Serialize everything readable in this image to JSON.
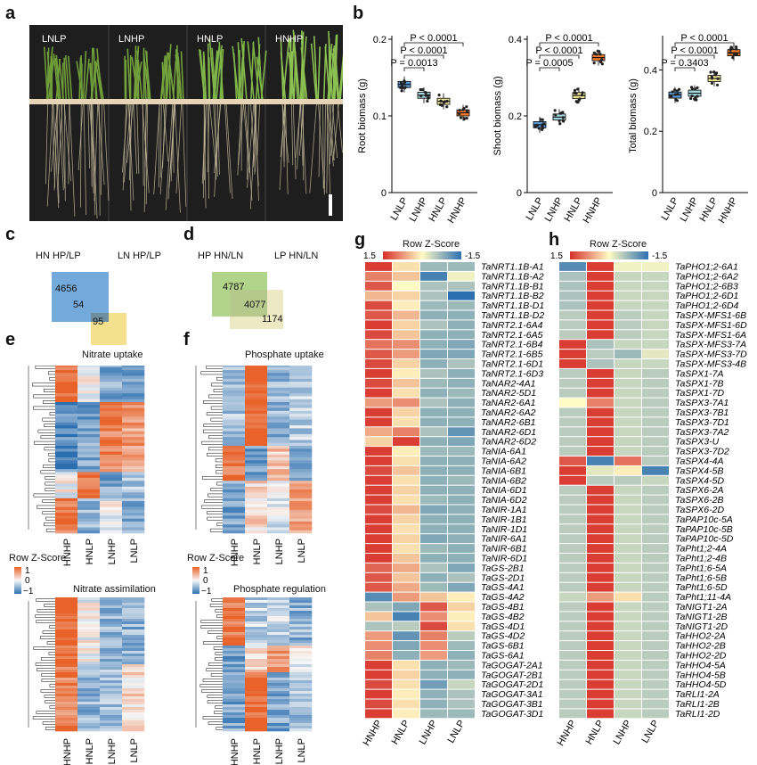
{
  "panels": {
    "a": "a",
    "b": "b",
    "c": "c",
    "d": "d",
    "e": "e",
    "f": "f",
    "g": "g",
    "h": "h"
  },
  "photo_labels": [
    "LNLP",
    "LNHP",
    "HNLP",
    "HNHP"
  ],
  "colors": {
    "LNLP": "#5b9bd5",
    "LNHP": "#a6d8e0",
    "HNLP": "#f1e99a",
    "HNHP": "#ee7d31",
    "high": "#d62f2a",
    "mid": "#fffbc4",
    "low": "#2c6fb0"
  },
  "chart_data": [
    {
      "type": "box",
      "title": "",
      "ylabel": "Root biomass (g)",
      "ylim": [
        0,
        0.2
      ],
      "yticks": [
        "0",
        "0.1",
        "0.2"
      ],
      "categories": [
        "LNLP",
        "LNHP",
        "HNLP",
        "HNHP"
      ],
      "values": [
        0.141,
        0.127,
        0.119,
        0.104
      ],
      "annotations": [
        "P < 0.0001",
        "P < 0.0001",
        "P = 0.0013"
      ]
    },
    {
      "type": "box",
      "title": "",
      "ylabel": "Shoot biomass (g)",
      "ylim": [
        0,
        0.4
      ],
      "yticks": [
        "0",
        "0.2",
        "0.4"
      ],
      "categories": [
        "LNLP",
        "LNHP",
        "HNLP",
        "HNHP"
      ],
      "values": [
        0.177,
        0.197,
        0.253,
        0.352
      ],
      "annotations": [
        "P < 0.0001",
        "P < 0.0001",
        "P = 0.0005"
      ]
    },
    {
      "type": "box",
      "title": "",
      "ylabel": "Total biomass (g)",
      "ylim": [
        0,
        0.5
      ],
      "yticks": [
        "0",
        "0.2",
        "0.4"
      ],
      "categories": [
        "LNLP",
        "LNHP",
        "HNLP",
        "HNHP"
      ],
      "values": [
        0.318,
        0.324,
        0.372,
        0.456
      ],
      "annotations": [
        "P < 0.0001",
        "P < 0.0001",
        "P = 0.3403"
      ]
    }
  ],
  "venn_c": {
    "left_title": "HN  HP/LP",
    "right_title": "LN  HP/LP",
    "a": "4656",
    "ab": "54",
    "b": "95"
  },
  "venn_d": {
    "left_title": "HP  HN/LN",
    "right_title": "LP  HN/LN",
    "a": "4787",
    "ab": "4077",
    "b": "1174"
  },
  "heatmap_e": {
    "title1": "Nitrate uptake",
    "title2": "Nitrate assimilation",
    "cols": [
      "HNHP",
      "HNLP",
      "LNHP",
      "LNLP"
    ]
  },
  "heatmap_f": {
    "title1": "Phosphate uptake",
    "title2": "Phosphate regulation",
    "cols": [
      "HNHP",
      "HNLP",
      "LNHP",
      "LNLP"
    ]
  },
  "zscore_legend": {
    "title": "Row Z-Score",
    "ticks": [
      "1",
      "0",
      "−1"
    ]
  },
  "g_legend": {
    "title": "Row Z-Score",
    "lo": "1.5",
    "hi": "-1.5"
  },
  "g_cols": [
    "HNHP",
    "HNLP",
    "LNHP",
    "LNLP"
  ],
  "g_genes": [
    "TaNRT1.1B-A1",
    "TaNRT1.1B-A2",
    "TaNRT1.1B-B1",
    "TaNRT1.1B-B2",
    "TaNRT1.1B-D1",
    "TaNRT1.1B-D2",
    "TaNRT2.1-6A4",
    "TaNRT2.1-6A5",
    "TaNRT2.1-6B4",
    "TaNRT2.1-6B5",
    "TaNRT2.1-6D1",
    "TaNRT2.1-6D3",
    "TaNAR2-4A1",
    "TaNAR2-5D1",
    "TaNAR2-6A1",
    "TaNAR2-6A2",
    "TaNAR2-6B1",
    "TaNAR2-6D1",
    "TaNAR2-6D2",
    "TaNIA-6A1",
    "TaNIA-6A2",
    "TaNIA-6B1",
    "TaNIA-6B2",
    "TaNIA-6D1",
    "TaNIA-6D2",
    "TaNIR-1A1",
    "TaNIR-1B1",
    "TaNIR-1D1",
    "TaNIR-6A1",
    "TaNIR-6B1",
    "TaNIR-6D1",
    "TaGS-2B1",
    "TaGS-2D1",
    "TaGS-4A1",
    "TaGS-4A2",
    "TaGS-4B1",
    "TaGS-4B2",
    "TaGS-4D1",
    "TaGS-4D2",
    "TaGS-6B1",
    "TaGS-6A1",
    "TaGOGAT-2A1",
    "TaGOGAT-2B1",
    "TaGOGAT-2D1",
    "TaGOGAT-3A1",
    "TaGOGAT-3B1",
    "TaGOGAT-3D1"
  ],
  "g_values": [
    [
      1.4,
      0.2,
      -0.7,
      -0.7
    ],
    [
      0.9,
      0.4,
      -1.3,
      -0.1
    ],
    [
      1.2,
      0.0,
      -0.6,
      -0.6
    ],
    [
      0.5,
      0.3,
      -0.6,
      -1.5
    ],
    [
      1.3,
      0.1,
      -0.7,
      -0.7
    ],
    [
      1.2,
      0.5,
      -0.8,
      -0.8
    ],
    [
      1.4,
      0.3,
      -0.6,
      -0.8
    ],
    [
      1.3,
      0.4,
      -0.8,
      -0.8
    ],
    [
      1.0,
      0.8,
      -0.8,
      -0.9
    ],
    [
      1.2,
      0.7,
      -0.9,
      -0.9
    ],
    [
      1.3,
      0.3,
      -0.8,
      -0.6
    ],
    [
      1.4,
      0.1,
      -0.6,
      -0.8
    ],
    [
      1.3,
      0.4,
      -0.7,
      -0.8
    ],
    [
      1.4,
      0.2,
      -0.8,
      -0.7
    ],
    [
      0.7,
      0.8,
      -0.6,
      -0.8
    ],
    [
      1.4,
      0.3,
      -0.8,
      -0.8
    ],
    [
      1.4,
      0.2,
      -0.8,
      -0.8
    ],
    [
      0.6,
      0.9,
      -0.6,
      -1.1
    ],
    [
      0.3,
      1.4,
      -0.8,
      -0.9
    ],
    [
      1.4,
      0.1,
      -0.7,
      -0.7
    ],
    [
      1.4,
      0.2,
      -0.8,
      -0.8
    ],
    [
      1.3,
      0.4,
      -0.8,
      -0.8
    ],
    [
      1.4,
      0.2,
      -0.8,
      -0.7
    ],
    [
      1.4,
      0.3,
      -0.8,
      -0.8
    ],
    [
      1.4,
      0.2,
      -0.7,
      -0.8
    ],
    [
      1.3,
      0.5,
      -0.9,
      -0.8
    ],
    [
      1.4,
      0.3,
      -0.8,
      -0.8
    ],
    [
      1.4,
      0.2,
      -0.8,
      -0.8
    ],
    [
      1.4,
      0.3,
      -0.9,
      -0.8
    ],
    [
      1.4,
      0.2,
      -0.7,
      -0.8
    ],
    [
      1.4,
      0.4,
      -0.8,
      -0.8
    ],
    [
      1.1,
      0.6,
      -0.6,
      -0.9
    ],
    [
      1.2,
      0.4,
      -0.8,
      -0.6
    ],
    [
      1.2,
      0.6,
      -0.7,
      -0.9
    ],
    [
      -1.2,
      0.7,
      0.4,
      0.1
    ],
    [
      -0.6,
      -0.9,
      1.2,
      0.3
    ],
    [
      0.4,
      -1.3,
      0.8,
      0.1
    ],
    [
      -0.6,
      -0.5,
      1.3,
      0.2
    ],
    [
      0.7,
      -1.1,
      0.9,
      -0.5
    ],
    [
      0.8,
      -0.9,
      0.8,
      -0.7
    ],
    [
      0.9,
      -0.8,
      0.7,
      -0.8
    ],
    [
      1.4,
      0.2,
      -0.8,
      -0.7
    ],
    [
      1.4,
      0.3,
      -0.8,
      -0.8
    ],
    [
      1.3,
      0.2,
      -1.0,
      -0.4
    ],
    [
      1.4,
      0.1,
      -0.8,
      -0.6
    ],
    [
      1.3,
      0.2,
      -0.8,
      -0.6
    ],
    [
      1.4,
      0.1,
      -0.7,
      -0.7
    ]
  ],
  "h_legend": {
    "title": "Row Z-Score",
    "lo": "1.5",
    "hi": "-1.5"
  },
  "h_cols": [
    "HNHP",
    "HNLP",
    "LNHP",
    "LNLP"
  ],
  "h_genes": [
    "TaPHO1;2-6A1",
    "TaPHO1;2-6A2",
    "TaPHO1;2-6B3",
    "TaPHO1;2-6D1",
    "TaPHO1;2-6D4",
    "TaSPX-MFS1-6B",
    "TaSPX-MFS1-6D",
    "TaSPX-MFS1-6A",
    "TaSPX-MFS3-7A",
    "TaSPX-MFS3-7D",
    "TaSPX-MFS3-4B",
    "TaSPX1-7A",
    "TaSPX1-7B",
    "TaSPX1-7D",
    "TaSPX3-7A1",
    "TaSPX3-7B1",
    "TaSPX3-7D1",
    "TaSPX3-7A2",
    "TaSPX3-U",
    "TaSPX3-7D2",
    "TaSPX4-4A",
    "TaSPX4-5B",
    "TaSPX4-5D",
    "TaSPX6-2A",
    "TaSPX6-2B",
    "TaSPX6-2D",
    "TaPAP10c-5A",
    "TaPAP10c-5B",
    "TaPAP10c-5D",
    "TaPht1;2-4A",
    "TaPht1;2-4B",
    "TaPht1;6-5A",
    "TaPht1;6-5B",
    "TaPht1;6-5D",
    "TaPht1;11-4A",
    "TaNIGT1-2A",
    "TaNIGT1-2B",
    "TaNIGT1-2D",
    "TaHHO2-2A",
    "TaHHO2-2B",
    "TaHHO2-2D",
    "TaHHO4-5A",
    "TaHHO4-5B",
    "TaHHO4-5D",
    "TaRLI1-2A",
    "TaRLI1-2B",
    "TaRLI1-2D"
  ],
  "h_values": [
    [
      -1.2,
      1.4,
      -0.1,
      -0.1
    ],
    [
      -0.6,
      1.4,
      -0.4,
      -0.4
    ],
    [
      -0.6,
      1.4,
      -0.4,
      -0.4
    ],
    [
      -0.6,
      1.4,
      -0.4,
      -0.4
    ],
    [
      -0.6,
      1.4,
      -0.4,
      -0.4
    ],
    [
      -0.5,
      1.4,
      -0.5,
      -0.4
    ],
    [
      -0.5,
      1.4,
      -0.5,
      -0.4
    ],
    [
      -0.5,
      1.4,
      -0.5,
      -0.4
    ],
    [
      1.4,
      -0.6,
      -0.4,
      -0.4
    ],
    [
      1.4,
      -0.5,
      -0.7,
      -0.2
    ],
    [
      1.4,
      -0.6,
      -0.4,
      -0.4
    ],
    [
      -0.5,
      1.4,
      -0.4,
      -0.5
    ],
    [
      -0.5,
      1.4,
      -0.4,
      -0.5
    ],
    [
      -0.5,
      1.4,
      -0.4,
      -0.5
    ],
    [
      0.0,
      0.9,
      -0.4,
      -0.5
    ],
    [
      -0.5,
      1.4,
      -0.4,
      -0.5
    ],
    [
      -0.5,
      1.4,
      -0.4,
      -0.5
    ],
    [
      -0.5,
      1.4,
      -0.4,
      -0.5
    ],
    [
      -0.5,
      1.4,
      -0.4,
      -0.5
    ],
    [
      -0.5,
      1.4,
      -0.4,
      -0.5
    ],
    [
      1.2,
      -1.3,
      1.0,
      -0.5
    ],
    [
      1.4,
      -0.2,
      0.1,
      -1.3
    ],
    [
      1.4,
      -0.5,
      -0.5,
      -0.4
    ],
    [
      -0.5,
      1.4,
      -0.4,
      -0.5
    ],
    [
      -0.5,
      1.4,
      -0.4,
      -0.5
    ],
    [
      -0.5,
      1.4,
      -0.4,
      -0.5
    ],
    [
      -0.5,
      1.4,
      -0.4,
      -0.5
    ],
    [
      -0.5,
      1.4,
      -0.4,
      -0.5
    ],
    [
      -0.5,
      1.4,
      -0.4,
      -0.5
    ],
    [
      -0.5,
      1.4,
      -0.4,
      -0.5
    ],
    [
      -0.5,
      1.4,
      -0.4,
      -0.5
    ],
    [
      -0.5,
      1.4,
      -0.4,
      -0.5
    ],
    [
      -0.5,
      1.4,
      -0.4,
      -0.5
    ],
    [
      -0.5,
      1.4,
      -0.4,
      -0.5
    ],
    [
      -0.4,
      0.7,
      0.2,
      -0.5
    ],
    [
      -0.5,
      1.4,
      -0.4,
      -0.5
    ],
    [
      -0.5,
      1.4,
      -0.4,
      -0.5
    ],
    [
      -0.5,
      1.4,
      -0.4,
      -0.5
    ],
    [
      -0.5,
      1.4,
      -0.4,
      -0.5
    ],
    [
      -0.5,
      1.4,
      -0.4,
      -0.5
    ],
    [
      -0.5,
      1.4,
      -0.4,
      -0.5
    ],
    [
      -0.5,
      1.4,
      -0.4,
      -0.5
    ],
    [
      -0.5,
      1.4,
      -0.4,
      -0.5
    ],
    [
      -0.5,
      1.4,
      -0.4,
      -0.5
    ],
    [
      -0.5,
      1.4,
      -0.4,
      -0.5
    ],
    [
      -0.5,
      1.4,
      -0.4,
      -0.5
    ],
    [
      -0.5,
      1.4,
      -0.4,
      -0.5
    ]
  ]
}
